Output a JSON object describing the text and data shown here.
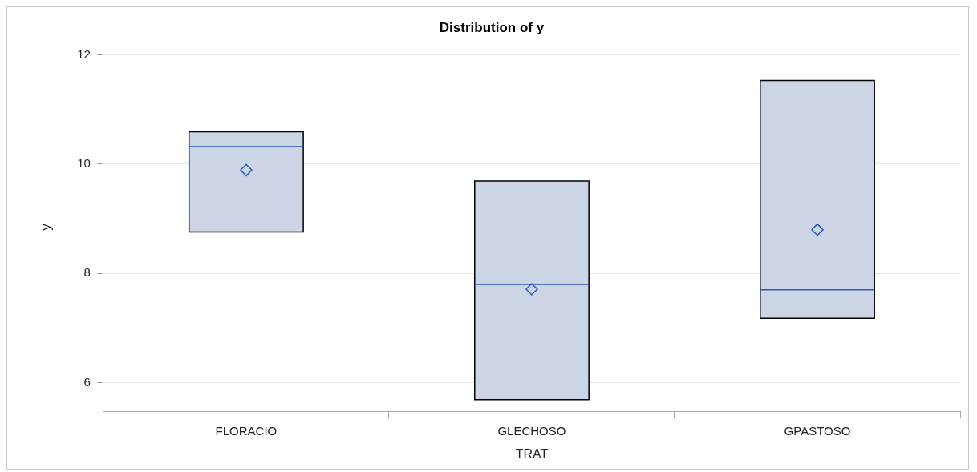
{
  "chart_data": {
    "type": "box",
    "title": "Distribution of y",
    "xlabel": "TRAT",
    "ylabel": "y",
    "categories": [
      "FLORACIO",
      "GLECHOSO",
      "GPASTOSO"
    ],
    "boxes": [
      {
        "low": 8.76,
        "q1": 8.76,
        "median": 10.32,
        "q3": 10.59,
        "high": 10.59,
        "mean": 9.89
      },
      {
        "low": 5.69,
        "q1": 5.69,
        "median": 7.8,
        "q3": 9.69,
        "high": 9.69,
        "mean": 7.71
      },
      {
        "low": 7.18,
        "q1": 7.18,
        "median": 7.7,
        "q3": 11.53,
        "high": 11.53,
        "mean": 8.8
      }
    ],
    "color": "#cbd5e5",
    "ylim": [
      5.47,
      12.22
    ],
    "yticks": [
      6,
      8,
      10,
      12
    ],
    "grid": "y",
    "legend": false,
    "marker": "diamond"
  }
}
